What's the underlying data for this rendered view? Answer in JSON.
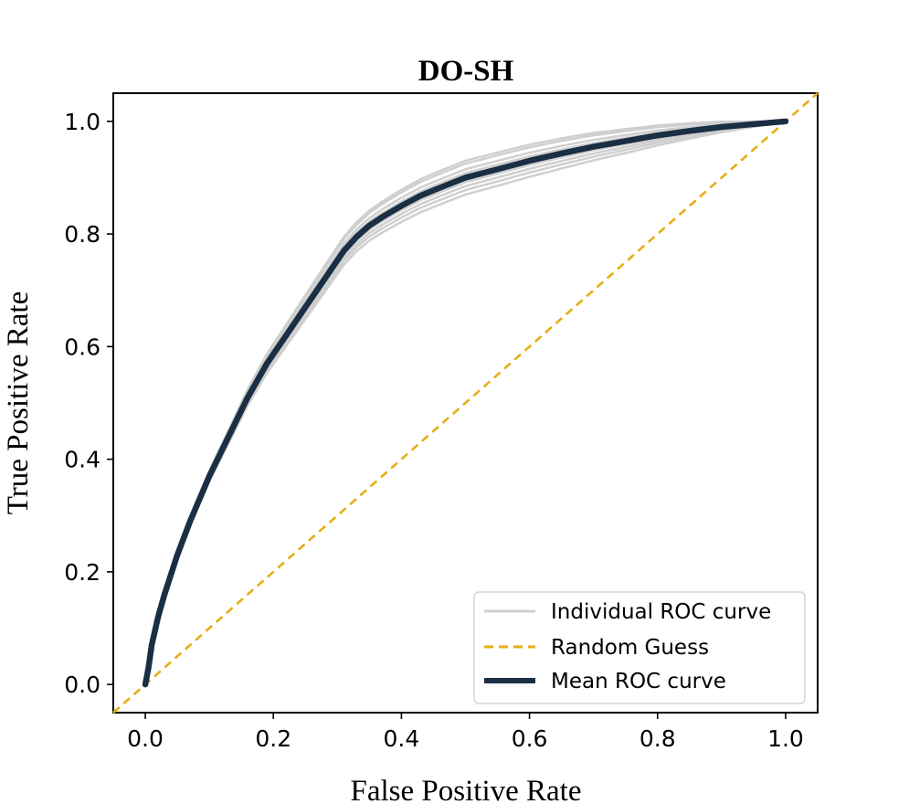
{
  "chart_data": {
    "type": "line",
    "title": "DO-SH",
    "xlabel": "False Positive Rate",
    "ylabel": "True Positive Rate",
    "xlim": [
      -0.05,
      1.05
    ],
    "ylim": [
      -0.05,
      1.05
    ],
    "xticks": [
      "0.0",
      "0.2",
      "0.4",
      "0.6",
      "0.8",
      "1.0"
    ],
    "yticks": [
      "0.0",
      "0.2",
      "0.4",
      "0.6",
      "0.8",
      "1.0"
    ],
    "legend_position": "lower-right",
    "series": [
      {
        "name": "Mean ROC curve",
        "style": "solid",
        "color": "#1a2e44",
        "x": [
          0.0,
          0.005,
          0.01,
          0.02,
          0.03,
          0.05,
          0.07,
          0.1,
          0.13,
          0.16,
          0.19,
          0.22,
          0.25,
          0.28,
          0.31,
          0.33,
          0.35,
          0.37,
          0.4,
          0.43,
          0.46,
          0.5,
          0.55,
          0.6,
          0.65,
          0.7,
          0.75,
          0.8,
          0.85,
          0.9,
          0.95,
          1.0
        ],
        "y": [
          0.0,
          0.03,
          0.07,
          0.12,
          0.16,
          0.23,
          0.29,
          0.37,
          0.44,
          0.51,
          0.57,
          0.62,
          0.67,
          0.72,
          0.77,
          0.795,
          0.815,
          0.83,
          0.85,
          0.868,
          0.882,
          0.9,
          0.915,
          0.93,
          0.943,
          0.955,
          0.965,
          0.975,
          0.983,
          0.99,
          0.995,
          1.0
        ]
      },
      {
        "name": "Random Guess",
        "style": "dashed",
        "color": "#e8ad16",
        "x": [
          -0.05,
          1.05
        ],
        "y": [
          -0.05,
          1.05
        ]
      }
    ],
    "individual_curves": {
      "name": "Individual ROC curve",
      "color": "#cfcfcf",
      "count": 8,
      "y_offsets": [
        0.03,
        -0.03,
        0.015,
        -0.015,
        0.025,
        -0.022,
        0.008,
        -0.008
      ]
    },
    "legend": [
      "Individual ROC curve",
      "Random Guess",
      "Mean ROC curve"
    ]
  }
}
